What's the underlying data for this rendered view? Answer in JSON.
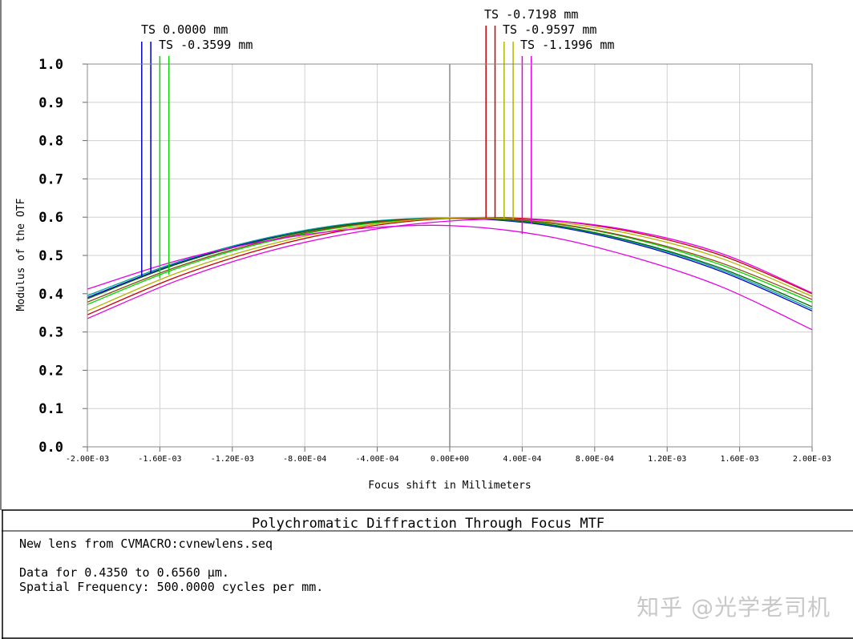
{
  "report": {
    "title": "Polychromatic Diffraction Through Focus MTF",
    "info_lines": [
      "New lens from CVMACRO:cvnewlens.seq",
      "",
      "Data for 0.4350 to 0.6560 µm.",
      "Spatial Frequency: 500.0000 cycles per mm."
    ],
    "watermark": "知乎 @光学老司机"
  },
  "chart_data": {
    "type": "line",
    "title": "",
    "xlabel": "Focus shift in Millimeters",
    "ylabel": "Modulus of the OTF",
    "xlim": [
      -0.002,
      0.002
    ],
    "ylim": [
      0.0,
      1.0
    ],
    "x_ticks": [
      -0.002,
      -0.0016,
      -0.0012,
      -0.0008,
      -0.0004,
      0.0,
      0.0004,
      0.0008,
      0.0012,
      0.0016,
      0.002
    ],
    "x_tick_labels": [
      "-2.00E-03",
      "-1.60E-03",
      "-1.20E-03",
      "-8.00E-04",
      "-4.00E-04",
      "0.00E+00",
      "4.00E-04",
      "8.00E-04",
      "1.20E-03",
      "1.60E-03",
      "2.00E-03"
    ],
    "y_ticks": [
      0.0,
      0.1,
      0.2,
      0.3,
      0.4,
      0.5,
      0.6,
      0.7,
      0.8,
      0.9,
      1.0
    ],
    "y_tick_labels": [
      "0.0",
      "0.1",
      "0.2",
      "0.3",
      "0.4",
      "0.5",
      "0.6",
      "0.7",
      "0.8",
      "0.9",
      "1.0"
    ],
    "grid": true,
    "legend_entries": [
      {
        "label": "TS 0.0000 mm",
        "color": "#0000c8"
      },
      {
        "label": "TS -0.3599 mm",
        "color": "#00d800"
      },
      {
        "label": "TS -0.7198 mm",
        "color": "#c80000"
      },
      {
        "label": "TS -0.9597 mm",
        "color": "#b4b400"
      },
      {
        "label": "TS -1.1996 mm",
        "color": "#e600e6"
      }
    ],
    "markers": [
      {
        "x": -0.0017,
        "y": 0.447,
        "color": "#0000c8"
      },
      {
        "x": -0.00165,
        "y": 0.455,
        "color": "#0000c8"
      },
      {
        "x": -0.0016,
        "y": 0.44,
        "color": "#00d800"
      },
      {
        "x": -0.00155,
        "y": 0.45,
        "color": "#00d800"
      },
      {
        "x": 0.0002,
        "y": 0.598,
        "color": "#c80000"
      },
      {
        "x": 0.00025,
        "y": 0.598,
        "color": "#c80000"
      },
      {
        "x": 0.0003,
        "y": 0.595,
        "color": "#b4b400"
      },
      {
        "x": 0.00035,
        "y": 0.593,
        "color": "#b4b400"
      },
      {
        "x": 0.0004,
        "y": 0.556,
        "color": "#e600e6"
      },
      {
        "x": 0.00045,
        "y": 0.583,
        "color": "#e600e6"
      }
    ],
    "series": [
      {
        "color": "#0000c8",
        "x": [
          -0.002,
          -0.0015,
          -0.001,
          -0.0005,
          0.0,
          0.0005,
          0.001,
          0.0015,
          0.002
        ],
        "values": [
          0.39,
          0.48,
          0.545,
          0.585,
          0.597,
          0.581,
          0.533,
          0.458,
          0.355
        ]
      },
      {
        "color": "#00a0a0",
        "x": [
          -0.002,
          -0.0015,
          -0.001,
          -0.0005,
          0.0,
          0.0005,
          0.001,
          0.0015,
          0.002
        ],
        "values": [
          0.395,
          0.483,
          0.547,
          0.586,
          0.598,
          0.583,
          0.536,
          0.462,
          0.36
        ]
      },
      {
        "color": "#006400",
        "x": [
          -0.002,
          -0.0015,
          -0.001,
          -0.0005,
          0.0,
          0.0005,
          0.001,
          0.0015,
          0.002
        ],
        "values": [
          0.387,
          0.478,
          0.543,
          0.584,
          0.597,
          0.584,
          0.538,
          0.466,
          0.366
        ]
      },
      {
        "color": "#00d800",
        "x": [
          -0.002,
          -0.0015,
          -0.001,
          -0.0005,
          0.0,
          0.0005,
          0.001,
          0.0015,
          0.002
        ],
        "values": [
          0.372,
          0.467,
          0.536,
          0.58,
          0.597,
          0.587,
          0.545,
          0.475,
          0.378
        ]
      },
      {
        "color": "#8b4513",
        "x": [
          -0.002,
          -0.0015,
          -0.001,
          -0.0005,
          0.0,
          0.0005,
          0.001,
          0.0015,
          0.002
        ],
        "values": [
          0.378,
          0.471,
          0.539,
          0.582,
          0.598,
          0.588,
          0.547,
          0.48,
          0.385
        ]
      },
      {
        "color": "#c80000",
        "x": [
          -0.002,
          -0.0015,
          -0.001,
          -0.0005,
          0.0,
          0.0005,
          0.001,
          0.0015,
          0.002
        ],
        "values": [
          0.345,
          0.445,
          0.521,
          0.572,
          0.597,
          0.594,
          0.562,
          0.5,
          0.4
        ]
      },
      {
        "color": "#b4b400",
        "x": [
          -0.002,
          -0.0015,
          -0.001,
          -0.0005,
          0.0,
          0.0005,
          0.001,
          0.0015,
          0.002
        ],
        "values": [
          0.355,
          0.455,
          0.528,
          0.576,
          0.598,
          0.591,
          0.556,
          0.492,
          0.393
        ]
      },
      {
        "color": "#e600e6",
        "x": [
          -0.002,
          -0.0015,
          -0.001,
          -0.0005,
          0.0,
          0.0005,
          0.001,
          0.0015,
          0.002
        ],
        "values": [
          0.335,
          0.435,
          0.511,
          0.562,
          0.59,
          0.593,
          0.565,
          0.505,
          0.402
        ]
      },
      {
        "color": "#e600e6",
        "x": [
          -0.002,
          -0.0015,
          -0.001,
          -0.0005,
          0.0,
          0.0005,
          0.001,
          0.0015,
          0.002
        ],
        "values": [
          0.412,
          0.487,
          0.539,
          0.57,
          0.578,
          0.553,
          0.497,
          0.418,
          0.306
        ]
      }
    ]
  }
}
